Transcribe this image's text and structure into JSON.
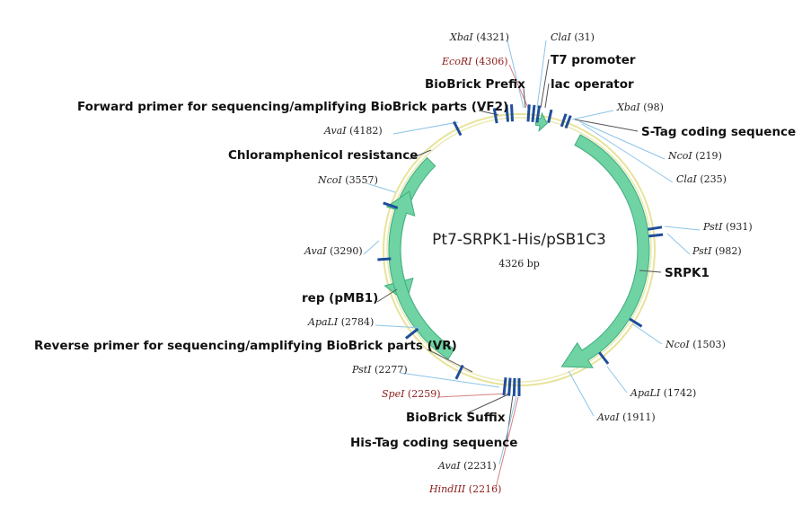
{
  "plasmid": {
    "name": "Pt7-SRPK1-His/pSB1C3",
    "size_label": "4326 bp"
  },
  "features": [
    {
      "id": "srpk1",
      "label": "SRPK1"
    },
    {
      "id": "cmr",
      "label": "Chloramphenicol resistance"
    },
    {
      "id": "rep",
      "label": "rep (pMB1)"
    },
    {
      "id": "stag",
      "label": "S-Tag coding sequence"
    },
    {
      "id": "t7",
      "label": "T7 promoter"
    },
    {
      "id": "lac",
      "label": "lac operator"
    },
    {
      "id": "prefix",
      "label": "BioBrick Prefix"
    },
    {
      "id": "vf2",
      "label": "Forward primer for sequencing/amplifying BioBrick parts (VF2)"
    },
    {
      "id": "vr",
      "label": "Reverse primer for sequencing/amplifying BioBrick parts (VR)"
    },
    {
      "id": "suffix",
      "label": "BioBrick Suffix"
    },
    {
      "id": "his",
      "label": "His-Tag coding sequence"
    }
  ],
  "sites": [
    {
      "id": "xba4321",
      "enzyme": "XbaI",
      "pos": "4321",
      "color": "#222222"
    },
    {
      "id": "eco4306",
      "enzyme": "EcoRI",
      "pos": "4306",
      "color": "#8b1a1a"
    },
    {
      "id": "cla31",
      "enzyme": "ClaI",
      "pos": "31",
      "color": "#222222"
    },
    {
      "id": "xba98",
      "enzyme": "XbaI",
      "pos": "98",
      "color": "#222222"
    },
    {
      "id": "nco219",
      "enzyme": "NcoI",
      "pos": "219",
      "color": "#222222"
    },
    {
      "id": "cla235",
      "enzyme": "ClaI",
      "pos": "235",
      "color": "#222222"
    },
    {
      "id": "ava4182",
      "enzyme": "AvaI",
      "pos": "4182",
      "color": "#222222"
    },
    {
      "id": "nco3557",
      "enzyme": "NcoI",
      "pos": "3557",
      "color": "#222222"
    },
    {
      "id": "ava3290",
      "enzyme": "AvaI",
      "pos": "3290",
      "color": "#222222"
    },
    {
      "id": "pst931",
      "enzyme": "PstI",
      "pos": "931",
      "color": "#222222"
    },
    {
      "id": "pst982",
      "enzyme": "PstI",
      "pos": "982",
      "color": "#222222"
    },
    {
      "id": "apa2784",
      "enzyme": "ApaLI",
      "pos": "2784",
      "color": "#222222"
    },
    {
      "id": "nco1503",
      "enzyme": "NcoI",
      "pos": "1503",
      "color": "#222222"
    },
    {
      "id": "apa1742",
      "enzyme": "ApaLI",
      "pos": "1742",
      "color": "#222222"
    },
    {
      "id": "ava1911",
      "enzyme": "AvaI",
      "pos": "1911",
      "color": "#222222"
    },
    {
      "id": "pst2277",
      "enzyme": "PstI",
      "pos": "2277",
      "color": "#222222"
    },
    {
      "id": "spe2259",
      "enzyme": "SpeI",
      "pos": "2259",
      "color": "#8b1a1a"
    },
    {
      "id": "ava2231",
      "enzyme": "AvaI",
      "pos": "2231",
      "color": "#222222"
    },
    {
      "id": "hind2216",
      "enzyme": "HindIII",
      "pos": "2216",
      "color": "#8b1a1a"
    }
  ],
  "colors": {
    "backbone": "#e8e39a",
    "feature_fill": "#6fd3a4",
    "feature_stroke": "#3fae7c",
    "site_tick": "#1f4e9a",
    "leader_blue": "#8cc4e8",
    "leader_red": "#d98080",
    "leader_gray": "#555555"
  }
}
